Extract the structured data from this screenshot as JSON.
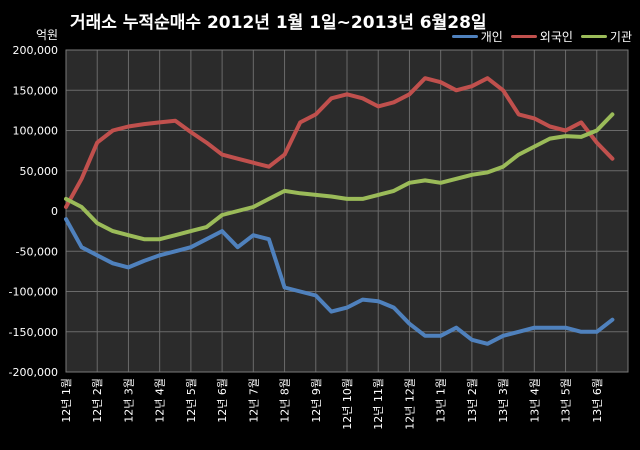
{
  "chart_data": {
    "type": "line",
    "title": "거래소  누적순매수 2012년 1월 1일~2013년 6월28일",
    "ylabel": "억원",
    "xlabel": "",
    "ylim": [
      -200000,
      200000
    ],
    "yticks": [
      -200000,
      -150000,
      -100000,
      -50000,
      0,
      50000,
      100000,
      150000,
      200000
    ],
    "ytick_labels": [
      "-200,000",
      "-150,000",
      "-100,000",
      "-50,000",
      "0",
      "50,000",
      "100,000",
      "150,000",
      "200,000"
    ],
    "grid": true,
    "legend_position": "top-right",
    "categories": [
      "12년 1월",
      "12년 2월",
      "12년 3월",
      "12년 4월",
      "12년 5월",
      "12년 6월",
      "12년 7월",
      "12년 8월",
      "12년 9월",
      "12년 10월",
      "12년 11월",
      "12년 12월",
      "13년 1월",
      "13년 2월",
      "13년 3월",
      "13년 4월",
      "13년 5월",
      "13년 6월"
    ],
    "x": [
      0,
      0.5,
      1,
      1.5,
      2,
      2.5,
      3,
      3.5,
      4,
      4.5,
      5,
      5.5,
      6,
      6.5,
      7,
      7.5,
      8,
      8.5,
      9,
      9.5,
      10,
      10.5,
      11,
      11.5,
      12,
      12.5,
      13,
      13.5,
      14,
      14.5,
      15,
      15.5,
      16,
      16.5,
      17,
      17.5
    ],
    "series": [
      {
        "name": "개인",
        "color": "#4f81bd",
        "values": [
          -10000,
          -45000,
          -55000,
          -65000,
          -70000,
          -62000,
          -55000,
          -50000,
          -45000,
          -35000,
          -25000,
          -45000,
          -30000,
          -35000,
          -95000,
          -100000,
          -105000,
          -125000,
          -120000,
          -110000,
          -112000,
          -120000,
          -140000,
          -155000,
          -155000,
          -145000,
          -160000,
          -165000,
          -155000,
          -150000,
          -145000,
          -145000,
          -145000,
          -150000,
          -150000,
          -135000
        ]
      },
      {
        "name": "외국인",
        "color": "#c0504d",
        "values": [
          5000,
          40000,
          85000,
          100000,
          105000,
          108000,
          110000,
          112000,
          98000,
          85000,
          70000,
          65000,
          60000,
          55000,
          70000,
          110000,
          120000,
          140000,
          145000,
          140000,
          130000,
          135000,
          145000,
          165000,
          160000,
          150000,
          155000,
          165000,
          150000,
          120000,
          115000,
          105000,
          100000,
          110000,
          85000,
          65000
        ]
      },
      {
        "name": "기관",
        "color": "#9bbb59",
        "values": [
          15000,
          5000,
          -15000,
          -25000,
          -30000,
          -35000,
          -35000,
          -30000,
          -25000,
          -20000,
          -5000,
          0,
          5000,
          15000,
          25000,
          22000,
          20000,
          18000,
          15000,
          15000,
          20000,
          25000,
          35000,
          38000,
          35000,
          40000,
          45000,
          48000,
          55000,
          70000,
          80000,
          90000,
          93000,
          92000,
          100000,
          120000
        ]
      }
    ]
  }
}
